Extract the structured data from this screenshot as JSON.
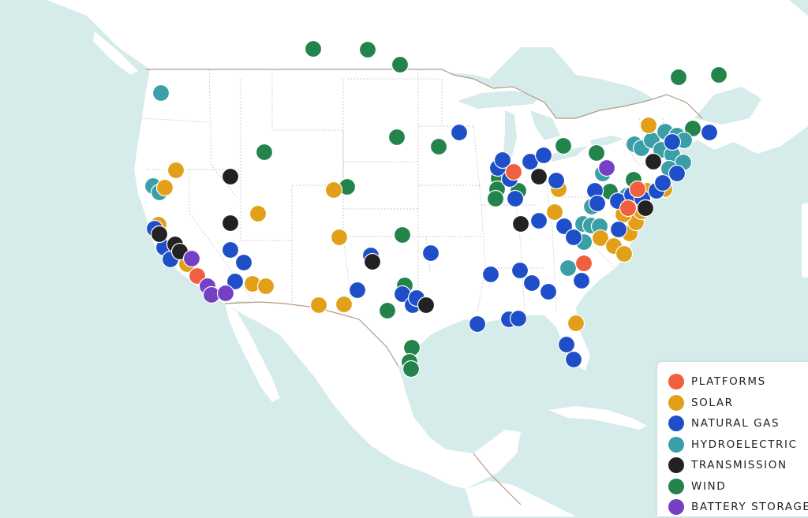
{
  "map": {
    "colors": {
      "ocean": "#d5ecea",
      "land": "#ffffff",
      "state_border": "#c9cdd2",
      "country_border": "#b59a82"
    }
  },
  "legend": {
    "items": [
      {
        "key": "platforms",
        "label": "PLATFORMS",
        "color": "#f05f3e"
      },
      {
        "key": "solar",
        "label": "SOLAR",
        "color": "#e2a018"
      },
      {
        "key": "natural_gas",
        "label": "NATURAL GAS",
        "color": "#1f4fc8"
      },
      {
        "key": "hydroelectric",
        "label": "HYDROELECTRIC",
        "color": "#3a9fa6"
      },
      {
        "key": "transmission",
        "label": "TRANSMISSION",
        "color": "#222222"
      },
      {
        "key": "wind",
        "label": "WIND",
        "color": "#22844a"
      },
      {
        "key": "battery_storage",
        "label": "BATTERY STORAGE",
        "color": "#7640c4"
      }
    ]
  }
}
